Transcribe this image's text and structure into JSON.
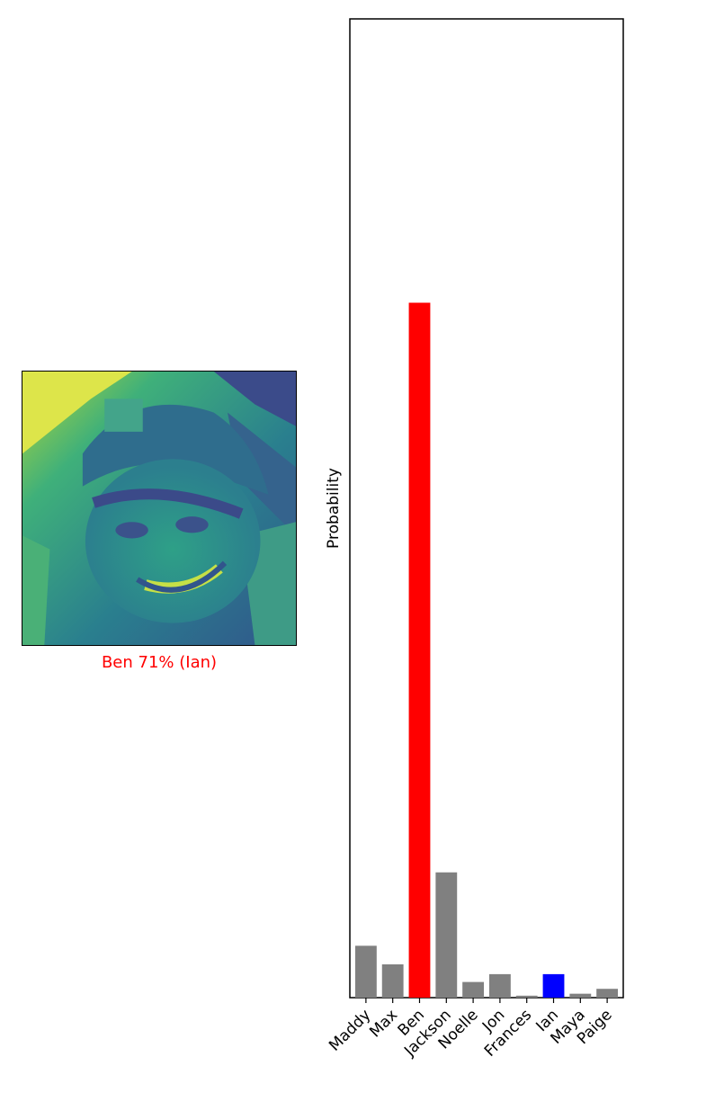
{
  "image_panel": {
    "caption": "Ben 71% (Ian)",
    "caption_color": "#ff0000",
    "image_description_icon": "face-image-icon"
  },
  "chart_data": {
    "type": "bar",
    "title": "",
    "xlabel": "",
    "ylabel": "Probability",
    "categories": [
      "Maddy",
      "Max",
      "Ben",
      "Jackson",
      "Noelle",
      "Jon",
      "Frances",
      "Ian",
      "Maya",
      "Paige"
    ],
    "values": [
      0.053,
      0.034,
      0.71,
      0.128,
      0.016,
      0.024,
      0.002,
      0.024,
      0.004,
      0.009
    ],
    "bar_colors": [
      "#808080",
      "#808080",
      "#ff0000",
      "#808080",
      "#808080",
      "#808080",
      "#808080",
      "#0000ff",
      "#808080",
      "#808080"
    ],
    "ylim": [
      0,
      1.0
    ],
    "grid": false,
    "legend": "none",
    "tick_rotation_deg": 45
  }
}
